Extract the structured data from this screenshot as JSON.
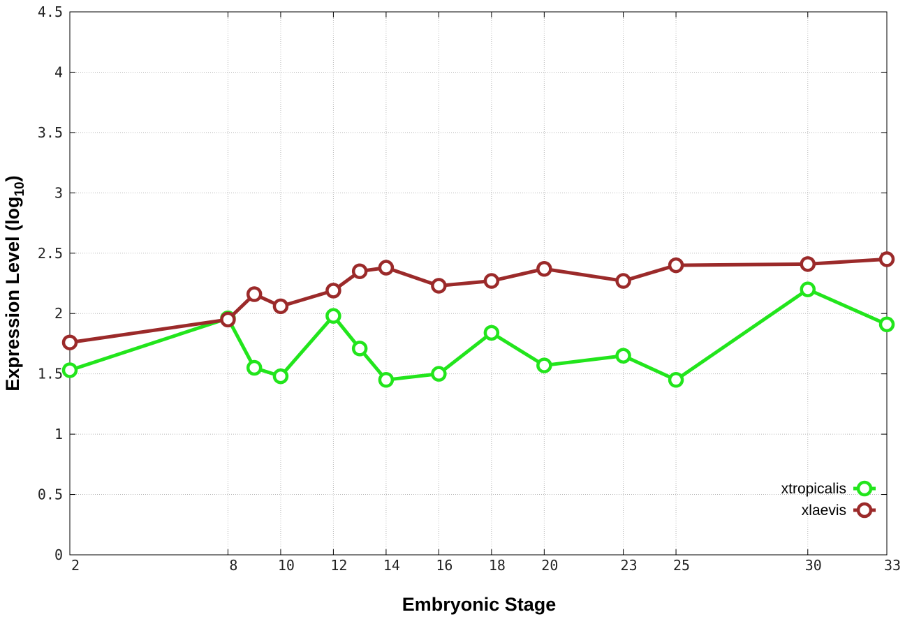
{
  "chart_data": {
    "type": "line",
    "title": "",
    "xlabel": "Embryonic Stage",
    "ylabel_main": "Expression Level (log",
    "ylabel_sub": "10",
    "ylabel_close": ")",
    "x_ticks": [
      "2",
      "8",
      "10",
      "12",
      "14",
      "16",
      "18",
      "20",
      "23",
      "25",
      "30",
      "33"
    ],
    "y_ticks": [
      "0",
      "0.5",
      "1",
      "1.5",
      "2",
      "2.5",
      "3",
      "3.5",
      "4",
      "4.5"
    ],
    "ylim": [
      0,
      4.5
    ],
    "grid": true,
    "legend_position": "bottom-right",
    "stages": [
      "2",
      "8",
      "9",
      "10",
      "12",
      "13",
      "14",
      "16",
      "18",
      "20",
      "23",
      "25",
      "30",
      "33"
    ],
    "series": [
      {
        "name": "xtropicalis",
        "color": "#22e51c",
        "values": [
          1.53,
          1.96,
          1.55,
          1.48,
          1.98,
          1.71,
          1.45,
          1.5,
          1.84,
          1.57,
          1.65,
          1.45,
          2.2,
          1.91
        ]
      },
      {
        "name": "xlaevis",
        "color": "#9b2a2a",
        "values": [
          1.76,
          1.95,
          2.16,
          2.06,
          2.19,
          2.35,
          2.38,
          2.23,
          2.27,
          2.37,
          2.27,
          2.4,
          2.41,
          2.45
        ]
      }
    ]
  }
}
